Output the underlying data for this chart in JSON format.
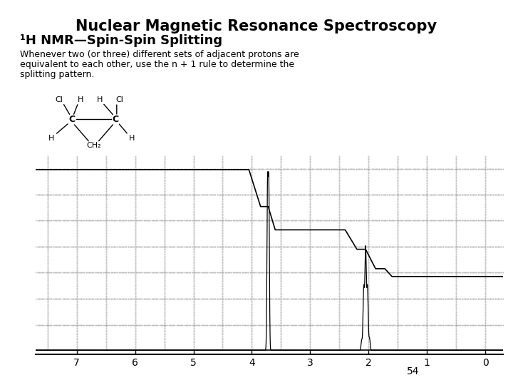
{
  "title1": "Nuclear Magnetic Resonance Spectroscopy",
  "title2": "¹H NMR—Spin-Spin Splitting",
  "body_text_line1": "Whenever two (or three) different sets of adjacent protons are",
  "body_text_line2": "equivalent to each other, use the n + 1 rule to determine the",
  "body_text_line3": "splitting pattern.",
  "page_number": "54",
  "background_color": "#ffffff",
  "x_ticks": [
    7,
    6,
    5,
    4,
    3,
    2,
    1,
    0
  ],
  "dot_grid_color": "#999999",
  "spectrum_color": "#000000"
}
